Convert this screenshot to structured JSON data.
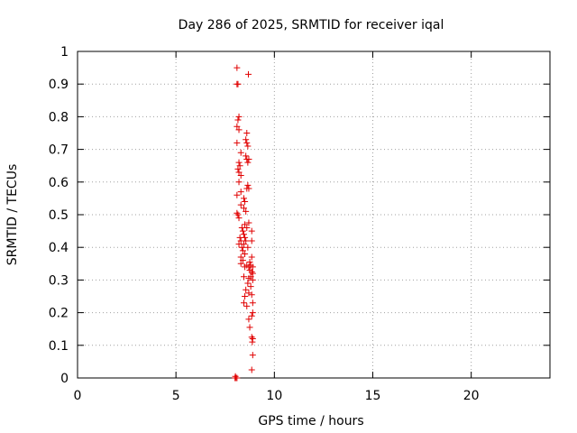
{
  "chart_data": {
    "type": "scatter",
    "title": "Day 286 of 2025, SRMTID for receiver iqal",
    "xlabel": "GPS time / hours",
    "ylabel": "SRMTID / TECUs",
    "xlim": [
      0,
      24
    ],
    "ylim": [
      0,
      1
    ],
    "xticks": [
      0,
      5,
      10,
      15,
      20
    ],
    "xtick_labels": [
      "0",
      "5",
      "10",
      "15",
      "20"
    ],
    "yticks": [
      0,
      0.1,
      0.2,
      0.3,
      0.4,
      0.5,
      0.6,
      0.7,
      0.8,
      0.9,
      1
    ],
    "ytick_labels": [
      "0",
      "0.1",
      "0.2",
      "0.3",
      "0.4",
      "0.5",
      "0.6",
      "0.7",
      "0.8",
      "0.9",
      "1"
    ],
    "grid": true,
    "marker": "+",
    "series": [
      {
        "name": "SRMTID",
        "color": "#e00000",
        "points": [
          [
            8.0,
            0.0
          ],
          [
            8.05,
            0.0
          ],
          [
            8.1,
            0.0
          ],
          [
            8.02,
            0.005
          ],
          [
            8.1,
            0.95
          ],
          [
            8.68,
            0.93
          ],
          [
            8.1,
            0.9
          ],
          [
            8.15,
            0.9
          ],
          [
            8.15,
            0.79
          ],
          [
            8.2,
            0.8
          ],
          [
            8.1,
            0.77
          ],
          [
            8.2,
            0.76
          ],
          [
            8.6,
            0.75
          ],
          [
            8.55,
            0.73
          ],
          [
            8.6,
            0.72
          ],
          [
            8.65,
            0.71
          ],
          [
            8.1,
            0.72
          ],
          [
            8.3,
            0.69
          ],
          [
            8.55,
            0.68
          ],
          [
            8.6,
            0.67
          ],
          [
            8.65,
            0.66
          ],
          [
            8.7,
            0.67
          ],
          [
            8.2,
            0.66
          ],
          [
            8.25,
            0.65
          ],
          [
            8.15,
            0.64
          ],
          [
            8.2,
            0.63
          ],
          [
            8.3,
            0.62
          ],
          [
            8.2,
            0.6
          ],
          [
            8.65,
            0.59
          ],
          [
            8.7,
            0.58
          ],
          [
            8.6,
            0.58
          ],
          [
            8.3,
            0.57
          ],
          [
            8.45,
            0.55
          ],
          [
            8.1,
            0.56
          ],
          [
            8.5,
            0.54
          ],
          [
            8.3,
            0.53
          ],
          [
            8.45,
            0.52
          ],
          [
            8.55,
            0.51
          ],
          [
            8.1,
            0.505
          ],
          [
            8.15,
            0.5
          ],
          [
            8.2,
            0.49
          ],
          [
            8.5,
            0.47
          ],
          [
            8.7,
            0.475
          ],
          [
            8.6,
            0.46
          ],
          [
            8.35,
            0.46
          ],
          [
            8.4,
            0.45
          ],
          [
            8.45,
            0.44
          ],
          [
            8.85,
            0.45
          ],
          [
            8.25,
            0.43
          ],
          [
            8.5,
            0.43
          ],
          [
            8.3,
            0.42
          ],
          [
            8.2,
            0.41
          ],
          [
            8.45,
            0.41
          ],
          [
            8.55,
            0.42
          ],
          [
            8.85,
            0.42
          ],
          [
            8.35,
            0.4
          ],
          [
            8.65,
            0.4
          ],
          [
            8.4,
            0.39
          ],
          [
            8.5,
            0.38
          ],
          [
            8.3,
            0.37
          ],
          [
            8.4,
            0.36
          ],
          [
            8.85,
            0.37
          ],
          [
            8.75,
            0.355
          ],
          [
            8.3,
            0.35
          ],
          [
            8.5,
            0.34
          ],
          [
            8.6,
            0.345
          ],
          [
            8.7,
            0.34
          ],
          [
            8.8,
            0.345
          ],
          [
            8.9,
            0.34
          ],
          [
            8.75,
            0.33
          ],
          [
            8.85,
            0.325
          ],
          [
            8.9,
            0.32
          ],
          [
            8.8,
            0.31
          ],
          [
            8.45,
            0.31
          ],
          [
            8.7,
            0.305
          ],
          [
            8.9,
            0.3
          ],
          [
            8.65,
            0.29
          ],
          [
            8.8,
            0.28
          ],
          [
            8.55,
            0.27
          ],
          [
            8.7,
            0.26
          ],
          [
            8.85,
            0.255
          ],
          [
            8.5,
            0.25
          ],
          [
            8.45,
            0.23
          ],
          [
            8.9,
            0.23
          ],
          [
            8.6,
            0.22
          ],
          [
            8.9,
            0.2
          ],
          [
            8.85,
            0.19
          ],
          [
            8.7,
            0.18
          ],
          [
            8.75,
            0.155
          ],
          [
            8.85,
            0.125
          ],
          [
            8.9,
            0.12
          ],
          [
            8.88,
            0.11
          ],
          [
            8.9,
            0.07
          ],
          [
            8.85,
            0.025
          ]
        ]
      }
    ]
  }
}
